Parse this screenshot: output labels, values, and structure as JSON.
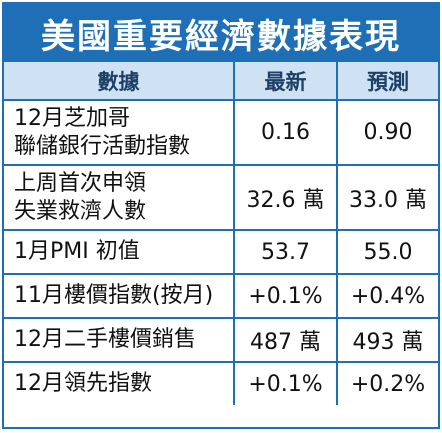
{
  "title": "美國重要經濟數據表現",
  "colors": {
    "frame_blue": "#1f6fb6",
    "header_bg": "#cfe2f4",
    "header_text": "#1e3f66",
    "body_text": "#111111"
  },
  "table": {
    "headers": [
      "數據",
      "最新",
      "預測"
    ],
    "rows": [
      {
        "label": "12月芝加哥\n聯儲銀行活動指數",
        "latest": "0.16",
        "forecast": "0.90"
      },
      {
        "label": "上周首次申領\n失業救濟人數",
        "latest": "32.6 萬",
        "forecast": "33.0 萬"
      },
      {
        "label": "1月PMI 初值",
        "latest": "53.7",
        "forecast": "55.0"
      },
      {
        "label": "11月樓價指數(按月)",
        "latest": "+0.1%",
        "forecast": "+0.4%"
      },
      {
        "label": "12月二手樓價銷售",
        "latest": "487 萬",
        "forecast": "493 萬"
      },
      {
        "label": "12月領先指數",
        "latest": "+0.1%",
        "forecast": "+0.2%"
      }
    ]
  }
}
